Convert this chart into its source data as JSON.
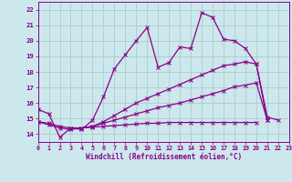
{
  "background_color": "#cde8ed",
  "grid_color": "#aacccc",
  "line_color": "#880088",
  "xlabel": "Windchill (Refroidissement éolien,°C)",
  "xlim": [
    0,
    23
  ],
  "ylim": [
    13.5,
    22.5
  ],
  "yticks": [
    14,
    15,
    16,
    17,
    18,
    19,
    20,
    21,
    22
  ],
  "xticks": [
    0,
    1,
    2,
    3,
    4,
    5,
    6,
    7,
    8,
    9,
    10,
    11,
    12,
    13,
    14,
    15,
    16,
    17,
    18,
    19,
    20,
    21,
    22,
    23
  ],
  "line1_x": [
    0,
    1,
    2,
    3,
    4,
    5,
    6,
    7,
    8,
    9,
    10,
    11,
    12,
    13,
    14,
    15,
    16,
    17,
    18,
    19,
    20,
    21,
    22
  ],
  "line1_y": [
    15.6,
    15.3,
    13.8,
    14.4,
    14.3,
    14.9,
    16.4,
    18.2,
    19.1,
    20.0,
    20.85,
    18.3,
    18.6,
    19.6,
    19.5,
    21.8,
    21.5,
    20.1,
    20.0,
    19.5,
    18.5,
    15.1,
    14.9
  ],
  "line2_x": [
    0,
    1,
    2,
    3,
    4,
    5,
    6,
    7,
    8,
    9,
    10,
    11,
    12,
    13,
    14,
    15,
    16,
    17,
    18,
    19,
    20,
    21
  ],
  "line2_y": [
    14.8,
    14.6,
    14.4,
    14.3,
    14.4,
    14.5,
    14.8,
    15.2,
    15.6,
    16.0,
    16.3,
    16.6,
    16.9,
    17.2,
    17.5,
    17.8,
    18.1,
    18.4,
    18.5,
    18.65,
    18.5,
    14.9
  ],
  "line3_x": [
    0,
    1,
    2,
    3,
    4,
    5,
    6,
    7,
    8,
    9,
    10,
    11,
    12,
    13,
    14,
    15,
    16,
    17,
    18,
    19,
    20,
    21,
    22,
    23
  ],
  "line3_y": [
    14.8,
    14.7,
    14.5,
    14.4,
    14.4,
    14.5,
    14.7,
    14.9,
    15.1,
    15.3,
    15.5,
    15.7,
    15.85,
    16.0,
    16.2,
    16.4,
    16.6,
    16.8,
    17.05,
    17.15,
    17.3,
    14.9,
    null,
    null
  ],
  "line4_x": [
    3,
    4,
    5,
    6,
    7,
    8,
    9,
    10,
    11,
    12,
    13,
    14,
    15,
    16,
    17,
    18,
    19,
    20
  ],
  "line4_y": [
    14.4,
    14.4,
    14.45,
    14.5,
    14.55,
    14.6,
    14.65,
    14.7,
    14.7,
    14.75,
    14.75,
    14.75,
    14.75,
    14.75,
    14.75,
    14.75,
    14.75,
    14.75
  ]
}
